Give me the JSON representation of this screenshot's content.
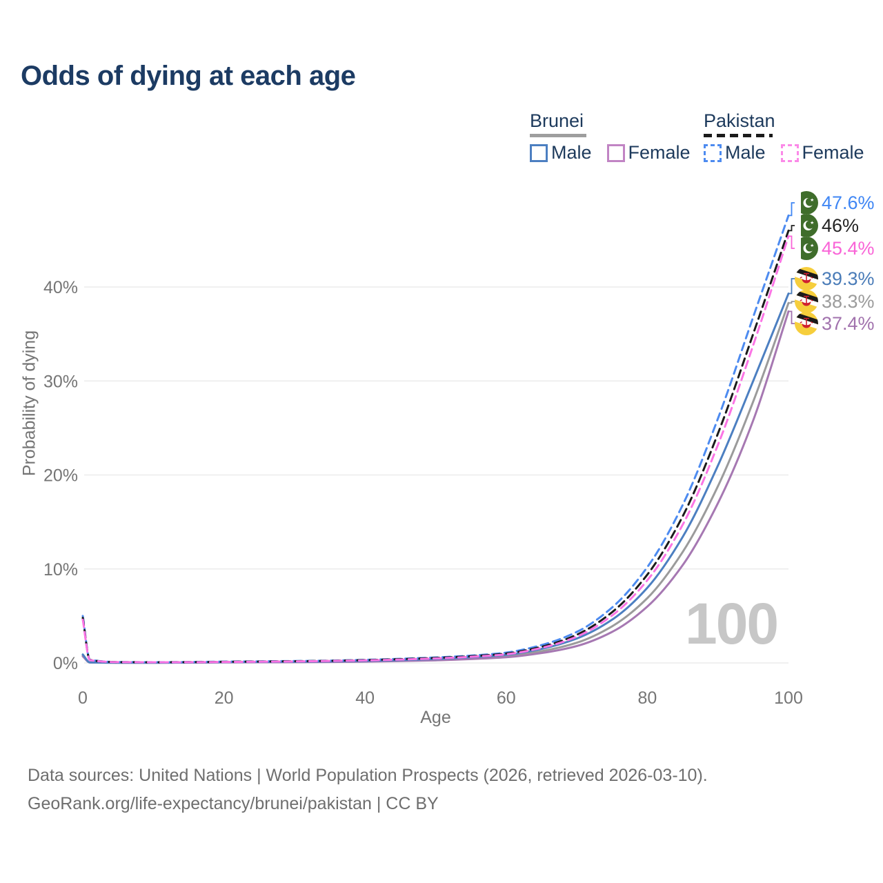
{
  "title": "Odds of dying at each age",
  "colors": {
    "title_text": "#1c3b63",
    "legend_text": "#1d3a5c",
    "axis_text": "#757575",
    "gridline": "#ebebeb",
    "watermark": "#c7c7c7",
    "footer_text": "#6e6e6e"
  },
  "legend": {
    "groups": [
      {
        "country": "Brunei",
        "line_style": "solid",
        "underline_color": "#9e9e9e",
        "items": [
          {
            "label": "Male",
            "color": "#4c7fc1"
          },
          {
            "label": "Female",
            "color": "#c184c4"
          }
        ]
      },
      {
        "country": "Pakistan",
        "line_style": "dashed",
        "underline_color": "#1b1b1b",
        "items": [
          {
            "label": "Male",
            "color": "#4d8bf0"
          },
          {
            "label": "Female",
            "color": "#fb8ae8"
          }
        ]
      }
    ]
  },
  "chart_data": {
    "type": "line",
    "title": "Odds of dying at each age",
    "xlabel": "Age",
    "ylabel": "Probability of dying",
    "xlim": [
      0,
      100
    ],
    "ylim": [
      0,
      48
    ],
    "grid": "horizontal",
    "x_ticks": [
      {
        "value": 0,
        "label": "0"
      },
      {
        "value": 20,
        "label": "20"
      },
      {
        "value": 40,
        "label": "40"
      },
      {
        "value": 60,
        "label": "60"
      },
      {
        "value": 80,
        "label": "80"
      },
      {
        "value": 100,
        "label": "100"
      }
    ],
    "y_ticks": [
      {
        "value": 0,
        "label": "0%"
      },
      {
        "value": 10,
        "label": "10%"
      },
      {
        "value": 20,
        "label": "20%"
      },
      {
        "value": 30,
        "label": "30%"
      },
      {
        "value": 40,
        "label": "40%"
      }
    ],
    "ages": [
      0,
      1,
      5,
      10,
      15,
      20,
      25,
      30,
      35,
      40,
      45,
      50,
      55,
      60,
      65,
      70,
      75,
      80,
      85,
      90,
      95,
      100
    ],
    "series": [
      {
        "key": "brunei_both",
        "name": "Brunei — Both sexes",
        "country": "Brunei",
        "sex": "both",
        "style": "solid",
        "color": "#9b9b9b",
        "values": [
          0.8,
          0.05,
          0.03,
          0.03,
          0.04,
          0.07,
          0.09,
          0.1,
          0.13,
          0.18,
          0.25,
          0.35,
          0.5,
          0.72,
          1.25,
          2.15,
          3.9,
          6.9,
          11.8,
          18.8,
          27.8,
          38.3
        ],
        "end_label": {
          "text": "38.3%",
          "color": "#9b9b9b",
          "flag": "brunei"
        }
      },
      {
        "key": "brunei_female",
        "name": "Brunei — Female",
        "country": "Brunei",
        "sex": "female",
        "style": "solid",
        "color": "#a678b2",
        "values": [
          0.7,
          0.05,
          0.02,
          0.02,
          0.03,
          0.05,
          0.07,
          0.08,
          0.1,
          0.14,
          0.2,
          0.28,
          0.41,
          0.6,
          1.05,
          1.8,
          3.3,
          6.0,
          10.4,
          17.0,
          25.8,
          37.4
        ],
        "end_label": {
          "text": "37.4%",
          "color": "#a172ad",
          "flag": "brunei"
        }
      },
      {
        "key": "brunei_male",
        "name": "Brunei — Male",
        "country": "Brunei",
        "sex": "male",
        "style": "solid",
        "color": "#4c7fc1",
        "values": [
          0.9,
          0.06,
          0.03,
          0.03,
          0.05,
          0.09,
          0.11,
          0.13,
          0.16,
          0.22,
          0.3,
          0.42,
          0.6,
          0.86,
          1.5,
          2.6,
          4.6,
          8.0,
          13.4,
          21.0,
          30.0,
          39.3
        ],
        "end_label": {
          "text": "39.3%",
          "color": "#4a7cb8",
          "flag": "brunei"
        }
      },
      {
        "key": "pakistan_male",
        "name": "Pakistan — Male",
        "country": "Pakistan",
        "sex": "male",
        "style": "dashed",
        "color": "#4d8bf0",
        "values": [
          5.0,
          0.35,
          0.1,
          0.08,
          0.1,
          0.14,
          0.17,
          0.2,
          0.25,
          0.33,
          0.44,
          0.58,
          0.78,
          1.1,
          1.9,
          3.3,
          5.9,
          10.2,
          16.8,
          26.0,
          36.8,
          47.6
        ],
        "end_label": {
          "text": "47.6%",
          "color": "#3f86f4",
          "flag": "pakistan"
        }
      },
      {
        "key": "pakistan_both",
        "name": "Pakistan — Both sexes",
        "country": "Pakistan",
        "sex": "both",
        "style": "dashed",
        "color": "#1b1b1b",
        "values": [
          4.8,
          0.33,
          0.09,
          0.07,
          0.09,
          0.12,
          0.15,
          0.18,
          0.23,
          0.3,
          0.4,
          0.53,
          0.71,
          1.0,
          1.72,
          3.0,
          5.4,
          9.4,
          15.6,
          24.4,
          35.0,
          46.0
        ],
        "end_label": {
          "text": "46%",
          "color": "#232323",
          "flag": "pakistan"
        }
      },
      {
        "key": "pakistan_female",
        "name": "Pakistan — Female",
        "country": "Pakistan",
        "sex": "female",
        "style": "dashed",
        "color": "#fb74e4",
        "values": [
          4.6,
          0.31,
          0.09,
          0.07,
          0.08,
          0.1,
          0.13,
          0.16,
          0.21,
          0.27,
          0.36,
          0.48,
          0.65,
          0.92,
          1.6,
          2.8,
          5.05,
          8.8,
          14.7,
          23.2,
          33.8,
          45.4
        ],
        "end_label": {
          "text": "45.4%",
          "color": "#f964d7",
          "flag": "pakistan"
        }
      }
    ],
    "end_label_order": [
      "pakistan_male",
      "pakistan_both",
      "pakistan_female",
      "brunei_male",
      "brunei_both",
      "brunei_female"
    ],
    "age_watermark": "100"
  },
  "footer": {
    "line1": "Data sources: United Nations | World Population Prospects (2026, retrieved 2026-03-10).",
    "line2": "GeoRank.org/life-expectancy/brunei/pakistan | CC BY"
  }
}
